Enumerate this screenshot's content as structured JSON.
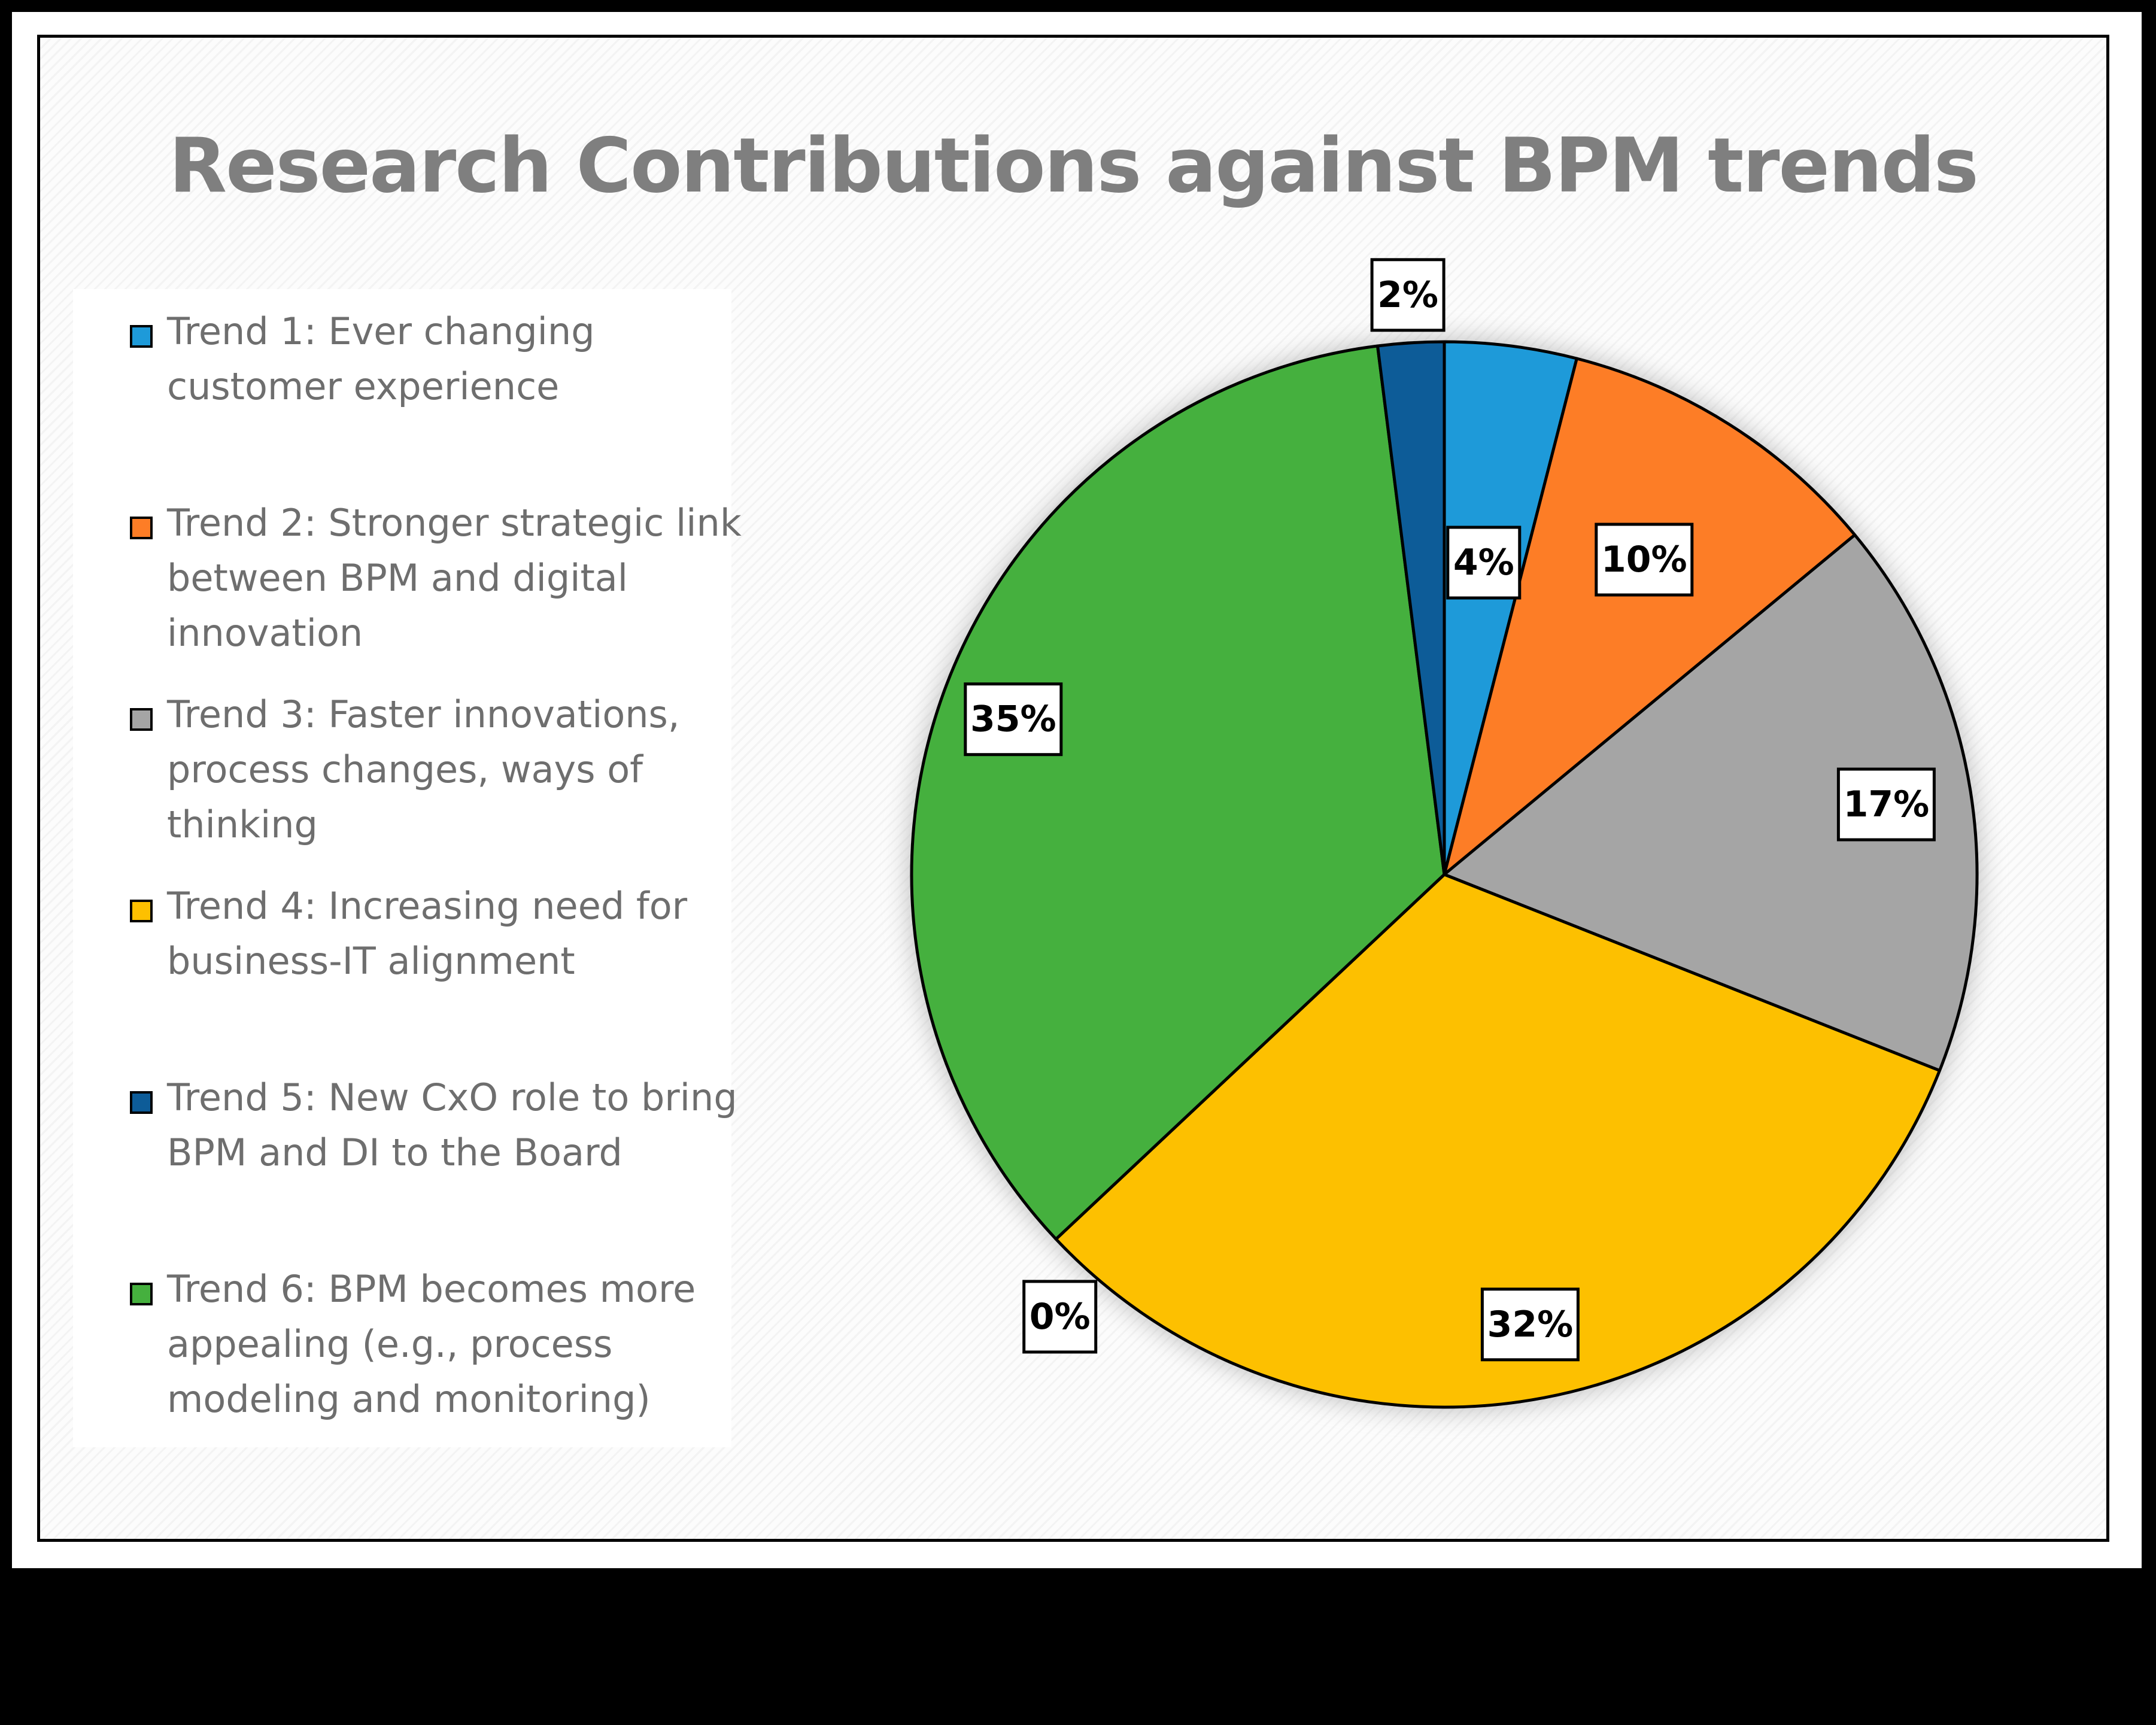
{
  "chart_data": {
    "type": "pie",
    "title": "Research Contributions against BPM trends",
    "legend_position": "left",
    "slices": [
      {
        "name": "Trend 1: Ever changing customer experience",
        "value": 4,
        "label": "4%",
        "color": "#1e9ad9"
      },
      {
        "name": "Trend 2: Stronger strategic link between BPM and digital innovation",
        "value": 10,
        "label": "10%",
        "color": "#fd7d26"
      },
      {
        "name": "Trend 3: Faster innovations, process changes, ways of thinking",
        "value": 17,
        "label": "17%",
        "color": "#a5a5a5"
      },
      {
        "name": "Trend 4: Increasing need for business-IT alignment",
        "value": 32,
        "label": "32%",
        "color": "#fdc000"
      },
      {
        "name": "Trend 5: New CxO role to bring BPM and DI to the Board",
        "value": 0,
        "label": "0%",
        "color": "#0d5c98"
      },
      {
        "name": "Trend 6: BPM becomes more appealing (e.g., process modeling and monitoring)",
        "value": 35,
        "label": "35%",
        "color": "#45b03e"
      },
      {
        "name": "",
        "value": 2,
        "label": "2%",
        "color": "#0d5c98"
      }
    ]
  }
}
